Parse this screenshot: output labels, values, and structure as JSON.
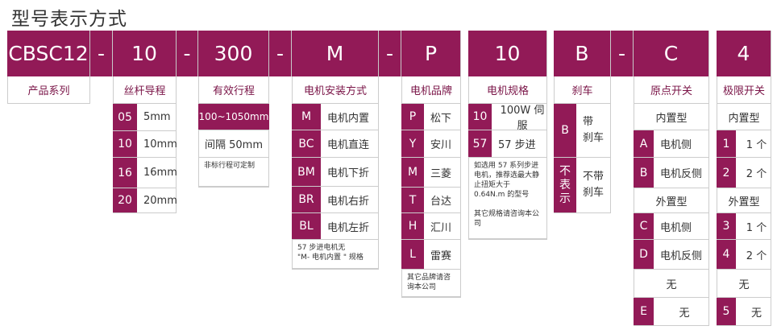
{
  "title": "型号表示方式",
  "colors": {
    "brand": "#921a57"
  },
  "segments": [
    {
      "id": "series",
      "code": "CBSC12",
      "label": "产品系列",
      "rows": []
    },
    {
      "id": "dash1",
      "code": "-"
    },
    {
      "id": "lead",
      "code": "10",
      "label": "丝杆导程",
      "rows": [
        {
          "code": "05",
          "text": "5mm"
        },
        {
          "code": "10",
          "text": "10mm"
        },
        {
          "code": "16",
          "text": "16mm"
        },
        {
          "code": "20",
          "text": "20mm"
        }
      ]
    },
    {
      "id": "dash2",
      "code": "-"
    },
    {
      "id": "stroke",
      "code": "300",
      "label": "有效行程",
      "rows": [
        {
          "type": "pink",
          "text": "100~1050mm"
        },
        {
          "type": "full",
          "text": "间隔 50mm"
        },
        {
          "type": "note",
          "text": "非标行程可定制"
        }
      ]
    },
    {
      "id": "dash3",
      "code": "-"
    },
    {
      "id": "mount",
      "code": "M",
      "label": "电机安装方式",
      "rows": [
        {
          "code": "M",
          "text": "电机内置"
        },
        {
          "code": "BC",
          "text": "电机直连"
        },
        {
          "code": "BM",
          "text": "电机下折"
        },
        {
          "code": "BR",
          "text": "电机右折"
        },
        {
          "code": "BL",
          "text": "电机左折"
        },
        {
          "type": "note",
          "text": "57 步进电机无\n\"M- 电机内置 \" 规格"
        }
      ]
    },
    {
      "id": "dash4",
      "code": "-"
    },
    {
      "id": "brand",
      "code": "P",
      "label": "电机品牌",
      "rows": [
        {
          "code": "P",
          "text": "松下"
        },
        {
          "code": "Y",
          "text": "安川"
        },
        {
          "code": "M",
          "text": "三菱"
        },
        {
          "code": "T",
          "text": "台达"
        },
        {
          "code": "H",
          "text": "汇川"
        },
        {
          "code": "L",
          "text": "雷赛"
        },
        {
          "type": "note",
          "text": "其它品牌请咨询本公司"
        }
      ]
    },
    {
      "id": "spec",
      "code": "10",
      "label": "电机规格",
      "rows": [
        {
          "code": "10",
          "text": "100W 伺服"
        },
        {
          "code": "57",
          "text": "57 步进"
        },
        {
          "type": "note",
          "text": "如选用 57 系列步进电机，推荐选最大静止扭矩大于 0.64N.m 的型号\n\n其它规格请咨询本公司"
        }
      ]
    },
    {
      "id": "brake",
      "code": "B",
      "label": "刹车",
      "rows": [
        {
          "code": "B",
          "text": "带\n刹车"
        },
        {
          "code": "不\n表\n示",
          "text": "不带\n刹车"
        }
      ]
    },
    {
      "id": "dash5",
      "code": "-"
    },
    {
      "id": "origin",
      "code": "C",
      "label": "原点开关",
      "rows": [
        {
          "type": "full",
          "text": "内置型"
        },
        {
          "code": "A",
          "text": "电机侧"
        },
        {
          "code": "B",
          "text": "电机反侧"
        },
        {
          "type": "full",
          "text": "外置型"
        },
        {
          "code": "C",
          "text": "电机侧"
        },
        {
          "code": "D",
          "text": "电机反侧"
        },
        {
          "type": "full",
          "text": "无"
        },
        {
          "code": "E",
          "text": "无"
        }
      ]
    },
    {
      "id": "limit",
      "code": "4",
      "label": "极限开关",
      "rows": [
        {
          "type": "full",
          "text": "内置型"
        },
        {
          "code": "1",
          "text": "1 个"
        },
        {
          "code": "2",
          "text": "2 个"
        },
        {
          "type": "full",
          "text": "外置型"
        },
        {
          "code": "3",
          "text": "1 个"
        },
        {
          "code": "4",
          "text": "2 个"
        },
        {
          "type": "full",
          "text": "无"
        },
        {
          "code": "5",
          "text": "无"
        }
      ]
    }
  ]
}
